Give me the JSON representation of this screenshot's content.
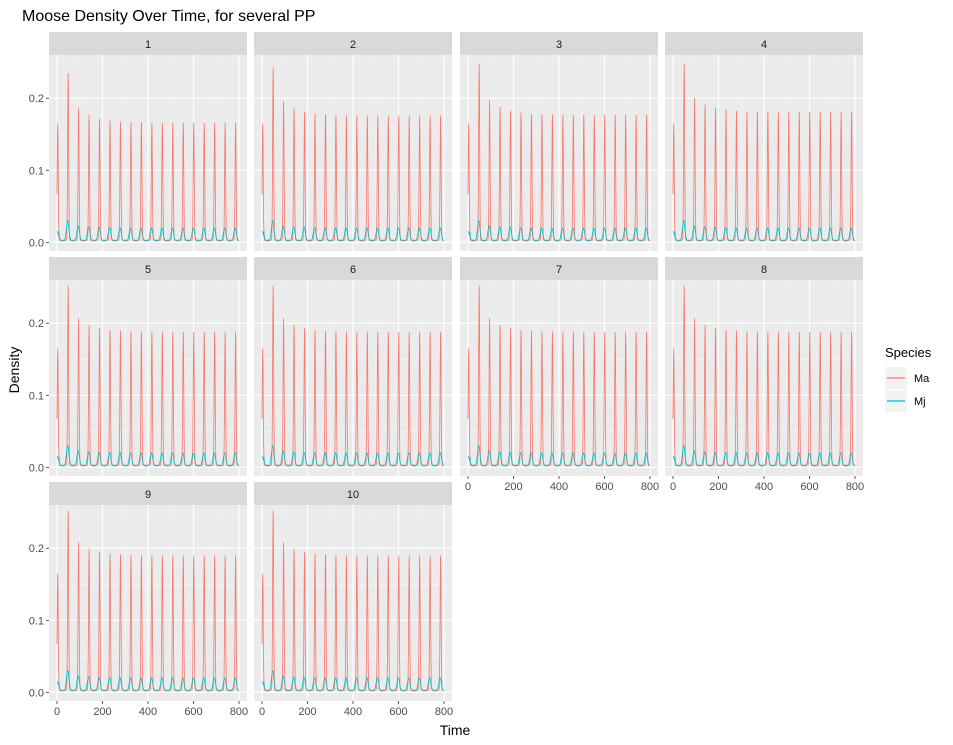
{
  "chart_data": {
    "type": "line",
    "title": "Moose Density Over Time, for several PP",
    "xlabel": "Time",
    "ylabel": "Density",
    "facets": [
      "1",
      "2",
      "3",
      "4",
      "5",
      "6",
      "7",
      "8",
      "9",
      "10"
    ],
    "facet_columns": 4,
    "xlim": [
      0,
      800
    ],
    "ylim": [
      -0.012,
      0.26
    ],
    "x_ticks": [
      0,
      200,
      400,
      600,
      800
    ],
    "y_ticks": [
      0.0,
      0.1,
      0.2
    ],
    "y_tick_labels": [
      "0.0",
      "0.1",
      "0.2"
    ],
    "grid": true,
    "legend": {
      "title": "Species",
      "position": "right",
      "entries": [
        {
          "name": "Ma",
          "color": "#F8766D"
        },
        {
          "name": "Mj",
          "color": "#00BFC4"
        }
      ]
    },
    "series_model": {
      "Ma": {
        "period": 46,
        "first_peak": 49,
        "first_peak_height": [
          0.235,
          0.243,
          0.248,
          0.248,
          0.252,
          0.252,
          0.252,
          0.252,
          0.252,
          0.252
        ],
        "steady_peak_height": [
          0.166,
          0.176,
          0.177,
          0.181,
          0.188,
          0.188,
          0.188,
          0.188,
          0.19,
          0.19
        ],
        "trough": 0.003
      },
      "Mj": {
        "period": 46,
        "first_peak": 47,
        "first_peak_height": 0.03,
        "steady_peak_height": 0.02,
        "trough": 0.002
      }
    }
  }
}
